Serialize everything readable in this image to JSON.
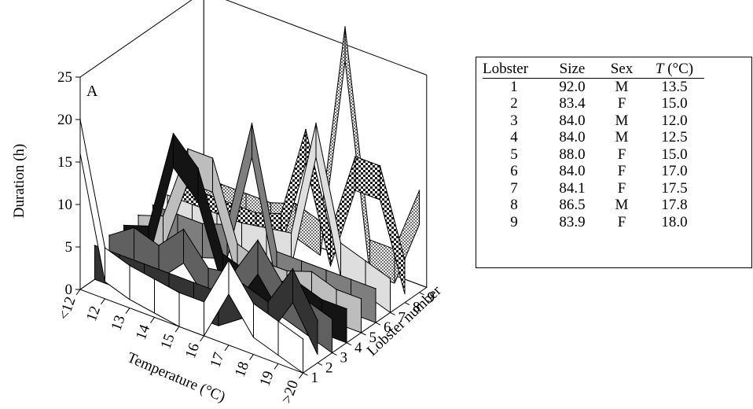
{
  "chart_data": [
    {
      "type": "3d-ribbon",
      "panel_label": "A",
      "xlabel": "Temperature (°C)",
      "ylabel": "Duration (h)",
      "zlabel": "Lobster number",
      "categories": [
        "<12",
        "12",
        "13",
        "14",
        "15",
        "16",
        "17",
        "18",
        "19",
        ">20"
      ],
      "y_ticks": [
        "0",
        "5",
        "10",
        "15",
        "20",
        "25"
      ],
      "ylim": [
        0,
        25
      ],
      "lobster_ticks": [
        "1",
        "2",
        "3",
        "4",
        "5",
        "6",
        "7",
        "8",
        "9"
      ],
      "series": [
        {
          "name": "1",
          "values": [
            16,
            2,
            1,
            0.5,
            0,
            0,
            6,
            2,
            1,
            0
          ],
          "color": "#ffffff"
        },
        {
          "name": "2",
          "values": [
            0,
            0,
            0,
            0,
            0,
            0,
            2,
            1,
            6,
            1
          ],
          "color": "#333333"
        },
        {
          "name": "3",
          "values": [
            0,
            2,
            1,
            4,
            0.5,
            1,
            6,
            2,
            1,
            0
          ],
          "color": "#606060"
        },
        {
          "name": "4",
          "values": [
            0,
            1,
            13,
            10,
            1,
            0,
            0,
            1,
            0,
            0
          ],
          "color": "#141414"
        },
        {
          "name": "5",
          "values": [
            0,
            1,
            10,
            10,
            1,
            0,
            0,
            1,
            0,
            0
          ],
          "color": "#bdbdbd"
        },
        {
          "name": "6",
          "values": [
            0,
            0,
            0,
            1,
            14,
            0,
            0,
            0,
            0,
            0
          ],
          "color": "#7e7e7e"
        },
        {
          "name": "7",
          "values": [
            0,
            0,
            0,
            0,
            0.5,
            1,
            15,
            2,
            1,
            0
          ],
          "color": "#dedede"
        },
        {
          "name": "8",
          "values": [
            0,
            0,
            0,
            0,
            1,
            12,
            1,
            11,
            11,
            1
          ],
          "color": "#2b2b2b",
          "pattern": "dark-check"
        },
        {
          "name": "9",
          "values": [
            0,
            0,
            0,
            0,
            1,
            0,
            24,
            0,
            0,
            8
          ],
          "color": "#c8c8c8",
          "pattern": "light-check"
        }
      ]
    },
    {
      "type": "table",
      "columns": [
        "Lobster",
        "Size",
        "Sex",
        "T (°C)"
      ],
      "rows": [
        [
          "1",
          "92.0",
          "M",
          "13.5"
        ],
        [
          "2",
          "83.4",
          "F",
          "15.0"
        ],
        [
          "3",
          "84.0",
          "M",
          "12.0"
        ],
        [
          "4",
          "84.0",
          "M",
          "12.5"
        ],
        [
          "5",
          "88.0",
          "F",
          "15.0"
        ],
        [
          "6",
          "84.0",
          "F",
          "17.0"
        ],
        [
          "7",
          "84.1",
          "F",
          "17.5"
        ],
        [
          "8",
          "86.5",
          "M",
          "17.8"
        ],
        [
          "9",
          "83.9",
          "F",
          "18.0"
        ]
      ]
    }
  ],
  "table": {
    "header": {
      "lobster": "Lobster",
      "size": "Size",
      "sex": "Sex",
      "t_symbol": "T",
      "t_unit": " (°C)"
    }
  }
}
